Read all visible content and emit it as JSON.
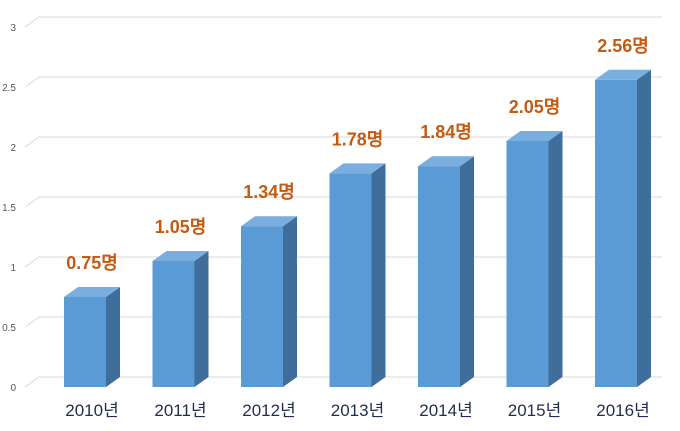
{
  "chart_data": {
    "type": "bar",
    "style": "3d-column",
    "categories": [
      "2010년",
      "2011년",
      "2012년",
      "2013년",
      "2014년",
      "2015년",
      "2016년"
    ],
    "values": [
      0.75,
      1.05,
      1.34,
      1.78,
      1.84,
      2.05,
      2.56
    ],
    "data_labels": [
      "0.75명",
      "1.05명",
      "1.34명",
      "1.78명",
      "1.84명",
      "2.05명",
      "2.56명"
    ],
    "yticks": [
      "0",
      "0.5",
      "1",
      "1.5",
      "2",
      "2.5",
      "3"
    ],
    "ylim": [
      0,
      3
    ],
    "grid": true,
    "legend": "none",
    "colors": {
      "bar_front": "#5b9bd5",
      "bar_side": "#3f6d9c",
      "bar_top": "#7aaede",
      "data_label": "#c55a11",
      "category_label": "#1f2d4f",
      "grid": "#d9d9d9"
    }
  }
}
